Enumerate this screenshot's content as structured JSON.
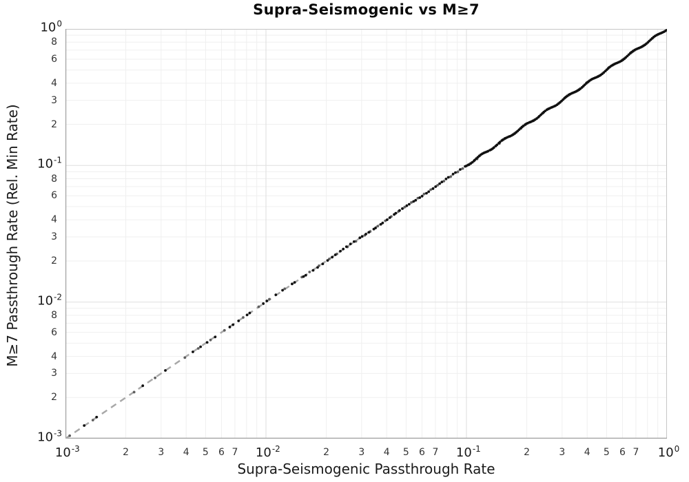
{
  "chart_data": {
    "type": "scatter",
    "title": "Supra-Seismogenic vs M≥7",
    "x_axis": {
      "label": "Supra-Seismogenic Passthrough Rate",
      "scale": "log",
      "range": [
        0.001,
        1.0
      ],
      "major_tick_exponents": [
        -3,
        -2,
        -1,
        0
      ],
      "minor_tick_labeled_subs": [
        2,
        3,
        4,
        5,
        6,
        7
      ],
      "minor_grid_subs": [
        2,
        3,
        4,
        5,
        6,
        7,
        8,
        9
      ]
    },
    "y_axis": {
      "label": "M≥7 Passthrough Rate (Rel. Min Rate)",
      "scale": "log",
      "range": [
        0.001,
        1.0
      ],
      "major_tick_exponents": [
        0,
        -1,
        -2,
        -3
      ],
      "minor_tick_labeled_subs": [
        8,
        6,
        4,
        3,
        2
      ],
      "minor_grid_subs": [
        2,
        3,
        4,
        5,
        6,
        7,
        8,
        9
      ]
    },
    "grid": "on",
    "legend": "none",
    "reference_line": {
      "name": "identity-line",
      "rule": "y = x",
      "from": [
        0.001,
        0.001
      ],
      "to": [
        1.0,
        1.0
      ],
      "style": "dashed",
      "color": "#a8a8a8"
    },
    "series": [
      {
        "name": "passthrough-points-gray",
        "marker": "dot",
        "color": "#5f5f5f",
        "y_equals_x": true,
        "x": [
          0.00105,
          0.00137,
          0.0022,
          0.0028,
          0.00394,
          0.0046,
          0.00529,
          0.00621,
          0.0077,
          0.0092,
          0.0104,
          0.0124,
          0.0151,
          0.0165,
          0.0184,
          0.0207,
          0.0226,
          0.0255,
          0.0281,
          0.0311,
          0.0331,
          0.0361,
          0.0394,
          0.0422,
          0.0458,
          0.0492,
          0.0531,
          0.0572,
          0.0615,
          0.0663,
          0.0718,
          0.0772,
          0.0834,
          0.0905,
          0.0958,
          0.113,
          0.146,
          0.187,
          0.241,
          0.31,
          0.398,
          0.512,
          0.659,
          0.846
        ]
      },
      {
        "name": "passthrough-points-black",
        "marker": "dot",
        "color": "#111111",
        "y_equals_x": true,
        "x": [
          0.00124,
          0.00143,
          0.00243,
          0.00315,
          0.00432,
          0.00472,
          0.00509,
          0.00558,
          0.0066,
          0.00685,
          0.0073,
          0.00805,
          0.0083,
          0.0097,
          0.0101,
          0.0112,
          0.0121,
          0.0135,
          0.0139,
          0.0154,
          0.0158,
          0.0172,
          0.0181,
          0.0192,
          0.0203,
          0.0214,
          0.0222,
          0.0235,
          0.0243,
          0.0252,
          0.0264,
          0.0275,
          0.0294,
          0.0302,
          0.0315,
          0.0326,
          0.0345,
          0.0352,
          0.0374,
          0.0382,
          0.0402,
          0.0415,
          0.0436,
          0.0444,
          0.0464,
          0.0479,
          0.0504,
          0.0518,
          0.0545,
          0.0558,
          0.0585,
          0.0601,
          0.0632,
          0.0648,
          0.0681,
          0.0702,
          0.0735,
          0.0754,
          0.0791,
          0.0812,
          0.0858,
          0.0881,
          0.0931,
          0.0985,
          0.1,
          0.102,
          0.103,
          0.105,
          0.107,
          0.109,
          0.11,
          0.112,
          0.114,
          0.116,
          0.118,
          0.12,
          0.122,
          0.124,
          0.126,
          0.128,
          0.131,
          0.133,
          0.135,
          0.137,
          0.14,
          0.142,
          0.145,
          0.147,
          0.15,
          0.152,
          0.155,
          0.157,
          0.16,
          0.163,
          0.165,
          0.168,
          0.171,
          0.174,
          0.177,
          0.18,
          0.183,
          0.186,
          0.189,
          0.192,
          0.196,
          0.199,
          0.202,
          0.206,
          0.209,
          0.213,
          0.216,
          0.22,
          0.224,
          0.228,
          0.231,
          0.235,
          0.239,
          0.243,
          0.247,
          0.252,
          0.256,
          0.26,
          0.265,
          0.269,
          0.274,
          0.278,
          0.283,
          0.288,
          0.293,
          0.298,
          0.303,
          0.308,
          0.313,
          0.318,
          0.324,
          0.329,
          0.335,
          0.34,
          0.346,
          0.352,
          0.358,
          0.364,
          0.37,
          0.377,
          0.383,
          0.389,
          0.396,
          0.403,
          0.41,
          0.417,
          0.424,
          0.431,
          0.438,
          0.445,
          0.453,
          0.461,
          0.468,
          0.476,
          0.484,
          0.493,
          0.501,
          0.509,
          0.518,
          0.527,
          0.536,
          0.545,
          0.554,
          0.563,
          0.573,
          0.583,
          0.593,
          0.603,
          0.613,
          0.623,
          0.634,
          0.645,
          0.656,
          0.667,
          0.678,
          0.69,
          0.701,
          0.713,
          0.725,
          0.738,
          0.75,
          0.763,
          0.776,
          0.789,
          0.803,
          0.816,
          0.83,
          0.844,
          0.859,
          0.873,
          0.888,
          0.903,
          0.919,
          0.934,
          0.95,
          0.966,
          0.983,
          1.0
        ]
      }
    ],
    "colors": {
      "background": "#ffffff",
      "grid_minor": "#efefef",
      "grid_major": "#e2e2e2",
      "border_top_right": "#c6c6c6",
      "axis_bottom_left": "#9e9e9e",
      "tick_major_text": "#1a1a1a",
      "tick_minor_text": "#333333",
      "title_text": "#0a0a0a"
    },
    "tick_base_label": "10"
  }
}
